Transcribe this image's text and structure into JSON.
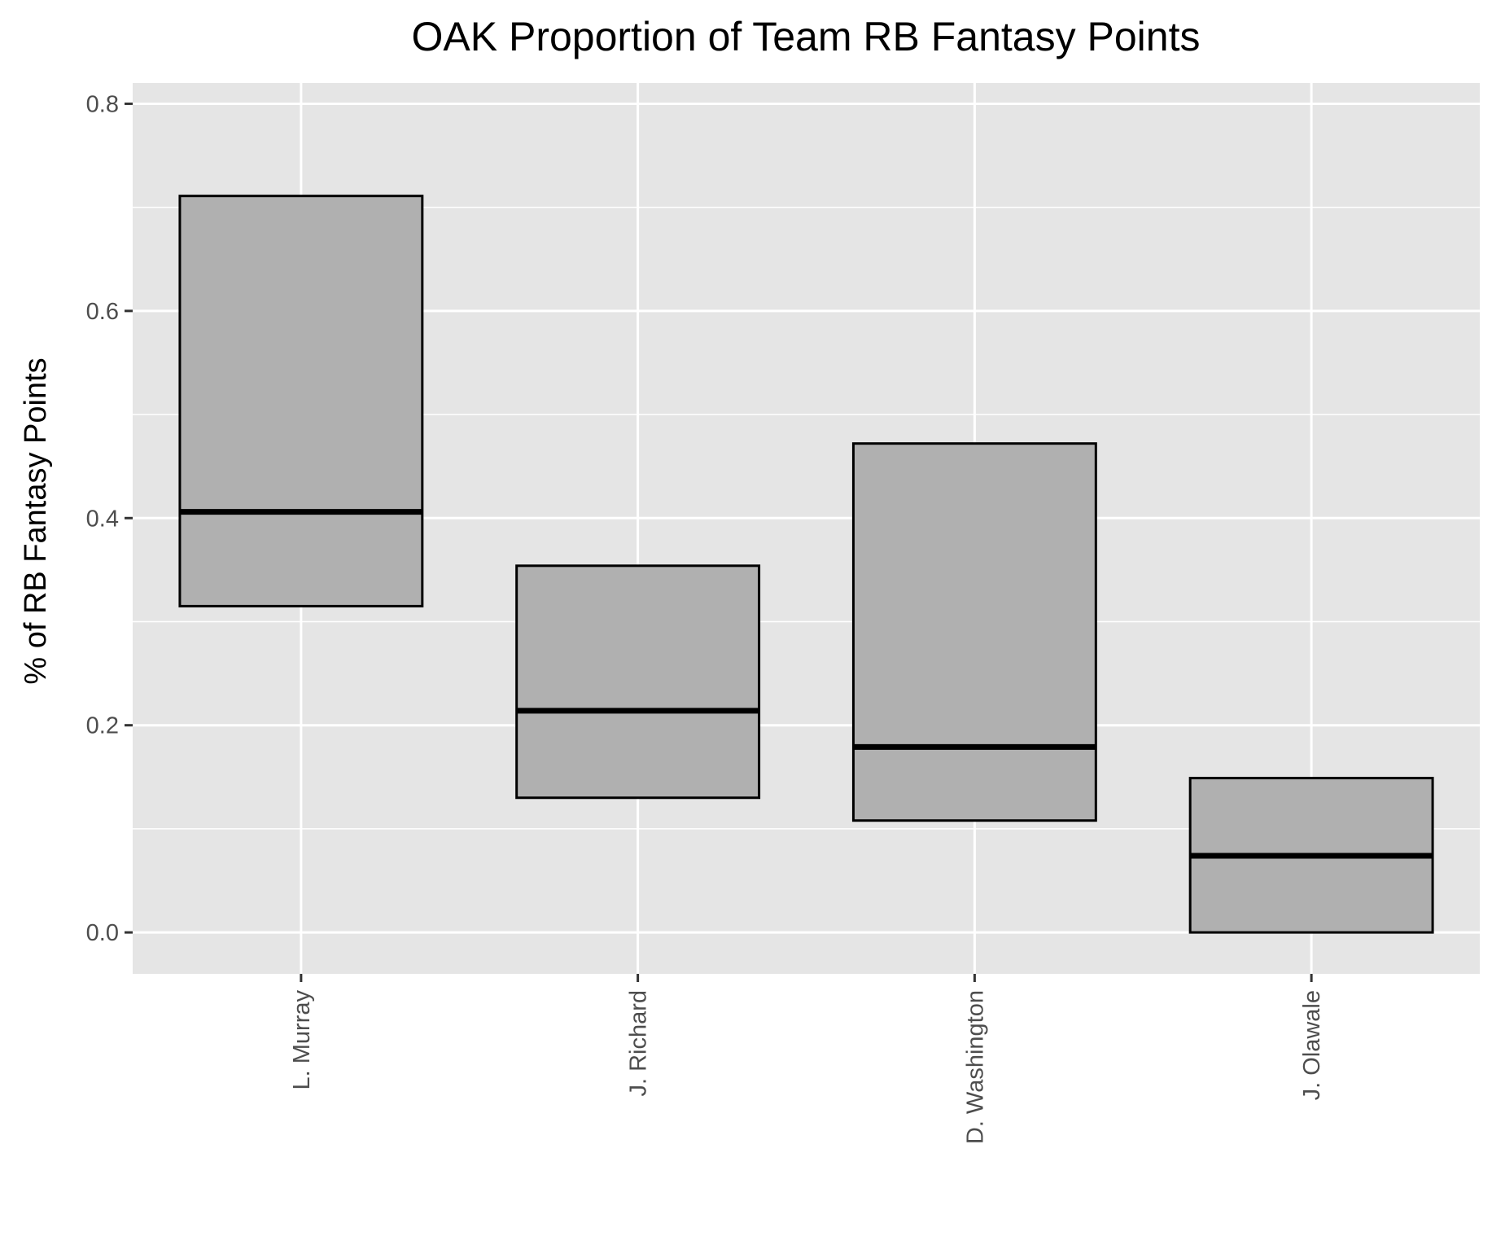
{
  "chart_data": {
    "type": "boxplot",
    "title": "OAK Proportion of Team RB Fantasy Points",
    "xlabel": "",
    "ylabel": "% of RB Fantasy Points",
    "categories": [
      "L. Murray",
      "J. Richard",
      "D. Washington",
      "J. Olawale"
    ],
    "boxes": [
      {
        "name": "L. Murray",
        "lower": 0.315,
        "median": 0.406,
        "upper": 0.711
      },
      {
        "name": "J. Richard",
        "lower": 0.13,
        "median": 0.214,
        "upper": 0.354
      },
      {
        "name": "D. Washington",
        "lower": 0.108,
        "median": 0.179,
        "upper": 0.472
      },
      {
        "name": "J. Olawale",
        "lower": 0.0,
        "median": 0.074,
        "upper": 0.149
      }
    ],
    "ylim": [
      -0.04,
      0.82
    ],
    "yticks": [
      0.0,
      0.2,
      0.4,
      0.6,
      0.8
    ],
    "ytick_labels": [
      "0.0",
      "0.2",
      "0.4",
      "0.6",
      "0.8"
    ],
    "x_tick_rotation": "vertical",
    "grid": true,
    "legend": "none",
    "colors": {
      "panel_background": "#e5e5e5",
      "grid_line": "#ffffff",
      "box_fill": "#b0b0b0",
      "box_stroke": "#000000",
      "tick_text": "#4d4d4d"
    }
  }
}
